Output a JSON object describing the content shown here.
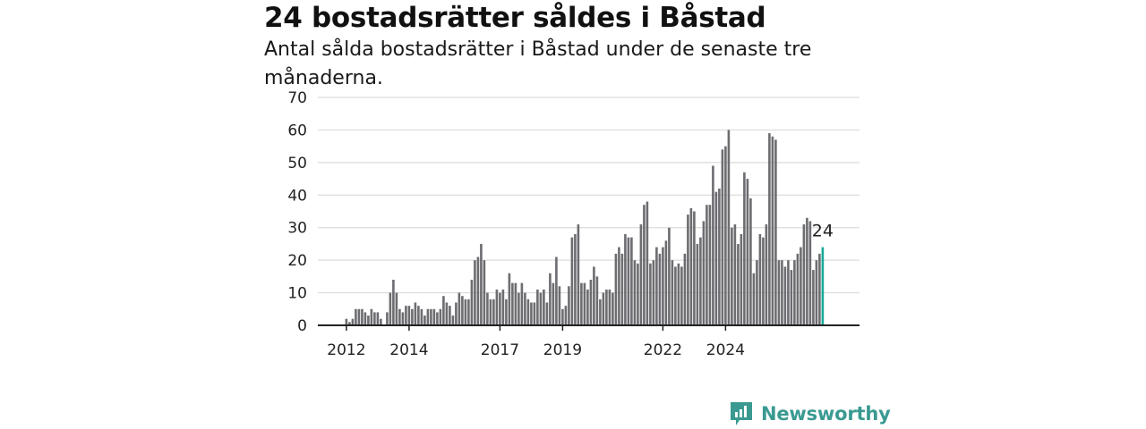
{
  "header": {
    "title": "24 bostadsrätter såldes i Båstad",
    "subtitle": "Antal sålda bostadsrätter i Båstad under de senaste tre månaderna."
  },
  "branding": {
    "name": "Newsworthy",
    "icon": "newsworthy-logo-icon",
    "color": "#3a9a91"
  },
  "colors": {
    "bar": "#6d6c71",
    "highlight": "#1aa89a",
    "grid": "#dcdcdc",
    "axis": "#222222"
  },
  "chart_data": {
    "type": "bar",
    "title": "24 bostadsrätter såldes i Båstad",
    "subtitle": "Antal sålda bostadsrätter i Båstad under de senaste tre månaderna.",
    "ylim": [
      0,
      70
    ],
    "yticks": [
      0,
      10,
      20,
      30,
      40,
      50,
      60,
      70
    ],
    "grid": true,
    "xlabel": "",
    "ylabel": "",
    "x_tick_labels": [
      "2012",
      "2014",
      "2017",
      "2019",
      "2022",
      "2024"
    ],
    "x_tick_index": [
      0,
      20,
      49,
      69,
      101,
      121
    ],
    "values": [
      2,
      1,
      2,
      5,
      5,
      5,
      4,
      3,
      5,
      4,
      4,
      2,
      0,
      4,
      10,
      14,
      10,
      5,
      4,
      6,
      6,
      5,
      7,
      6,
      5,
      3,
      5,
      5,
      5,
      4,
      5,
      9,
      7,
      6,
      3,
      7,
      10,
      9,
      8,
      8,
      14,
      20,
      21,
      25,
      20,
      10,
      8,
      8,
      11,
      10,
      11,
      8,
      16,
      13,
      13,
      10,
      13,
      10,
      8,
      7,
      7,
      11,
      10,
      11,
      7,
      16,
      13,
      21,
      12,
      5,
      6,
      12,
      27,
      28,
      31,
      13,
      13,
      11,
      14,
      18,
      15,
      8,
      10,
      11,
      11,
      10,
      22,
      24,
      22,
      28,
      27,
      27,
      20,
      19,
      31,
      37,
      38,
      19,
      20,
      24,
      22,
      24,
      26,
      30,
      20,
      18,
      19,
      18,
      22,
      34,
      36,
      35,
      25,
      27,
      32,
      37,
      37,
      49,
      41,
      42,
      54,
      55,
      60,
      30,
      31,
      25,
      28,
      47,
      45,
      39,
      16,
      20,
      28,
      27,
      31,
      59,
      58,
      57,
      20,
      20,
      18,
      20,
      17,
      20,
      22,
      24,
      31,
      33,
      32,
      17,
      20,
      22,
      24
    ],
    "highlight_last": true,
    "annotation": "24"
  }
}
